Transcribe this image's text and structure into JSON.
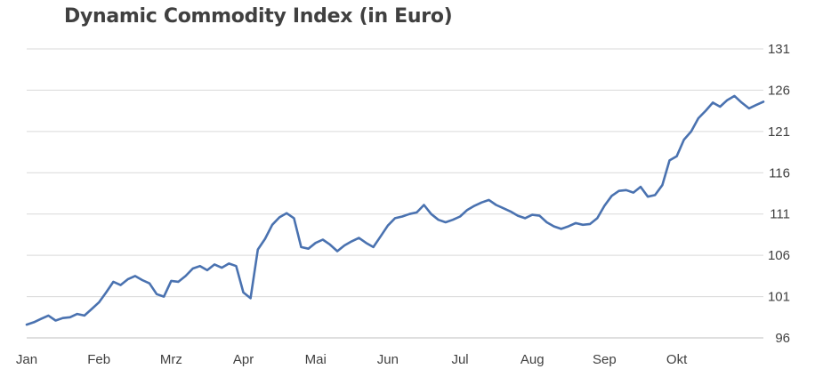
{
  "chart_data": {
    "type": "line",
    "title": "Dynamic Commodity Index (in Euro)",
    "xlabel": "",
    "ylabel": "",
    "ylim": [
      96,
      131
    ],
    "yticks": [
      96,
      101,
      106,
      111,
      116,
      121,
      126,
      131
    ],
    "ytick_labels": [
      "96",
      "101",
      "106",
      "111",
      "116",
      "121",
      "126",
      "131"
    ],
    "y_axis_side": "right",
    "grid": "horizontal",
    "legend": "none",
    "line_color": "#4a72b0",
    "categories": [
      "Jan",
      "Feb",
      "Mrz",
      "Apr",
      "Mai",
      "Jun",
      "Jul",
      "Aug",
      "Sep",
      "Okt"
    ],
    "x_range": [
      0,
      10.2
    ],
    "x": [
      0,
      0.1,
      0.2,
      0.3,
      0.4,
      0.5,
      0.6,
      0.7,
      0.8,
      0.9,
      1.0,
      1.1,
      1.2,
      1.3,
      1.4,
      1.5,
      1.6,
      1.7,
      1.8,
      1.9,
      2.0,
      2.1,
      2.2,
      2.3,
      2.4,
      2.5,
      2.6,
      2.7,
      2.8,
      2.9,
      3.0,
      3.1,
      3.2,
      3.3,
      3.4,
      3.5,
      3.6,
      3.7,
      3.8,
      3.9,
      4.0,
      4.1,
      4.2,
      4.3,
      4.4,
      4.5,
      4.6,
      4.7,
      4.8,
      4.9,
      5.0,
      5.1,
      5.2,
      5.3,
      5.4,
      5.5,
      5.6,
      5.7,
      5.8,
      5.9,
      6.0,
      6.1,
      6.2,
      6.3,
      6.4,
      6.5,
      6.6,
      6.7,
      6.8,
      6.9,
      7.0,
      7.1,
      7.2,
      7.3,
      7.4,
      7.5,
      7.6,
      7.7,
      7.8,
      7.9,
      8.0,
      8.1,
      8.2,
      8.3,
      8.4,
      8.5,
      8.6,
      8.7,
      8.8,
      8.9,
      9.0,
      9.1,
      9.2,
      9.3,
      9.4,
      9.5,
      9.6,
      9.7,
      9.8,
      9.9,
      10.0,
      10.1,
      10.2
    ],
    "values": [
      97.6,
      97.9,
      98.3,
      98.7,
      98.1,
      98.4,
      98.5,
      98.9,
      98.7,
      99.5,
      100.3,
      101.5,
      102.8,
      102.4,
      103.1,
      103.5,
      103.0,
      102.6,
      101.3,
      101.0,
      102.9,
      102.8,
      103.5,
      104.4,
      104.7,
      104.2,
      104.9,
      104.5,
      105.0,
      104.7,
      101.5,
      100.8,
      106.7,
      108.0,
      109.7,
      110.6,
      111.1,
      110.5,
      107.0,
      106.8,
      107.5,
      107.9,
      107.3,
      106.5,
      107.2,
      107.7,
      108.1,
      107.5,
      107.0,
      108.3,
      109.6,
      110.5,
      110.7,
      111.0,
      111.2,
      112.1,
      111.0,
      110.3,
      110.0,
      110.3,
      110.7,
      111.5,
      112.0,
      112.4,
      112.7,
      112.1,
      111.7,
      111.3,
      110.8,
      110.5,
      110.9,
      110.8,
      110.0,
      109.5,
      109.2,
      109.5,
      109.9,
      109.7,
      109.8,
      110.5,
      112.0,
      113.2,
      113.8,
      113.9,
      113.6,
      114.3,
      113.1,
      113.3,
      114.5,
      117.5,
      118.0,
      120.0,
      121.0,
      122.6,
      123.5,
      124.5,
      124.0,
      124.8,
      125.3,
      124.5,
      123.8,
      124.2,
      124.6
    ]
  }
}
